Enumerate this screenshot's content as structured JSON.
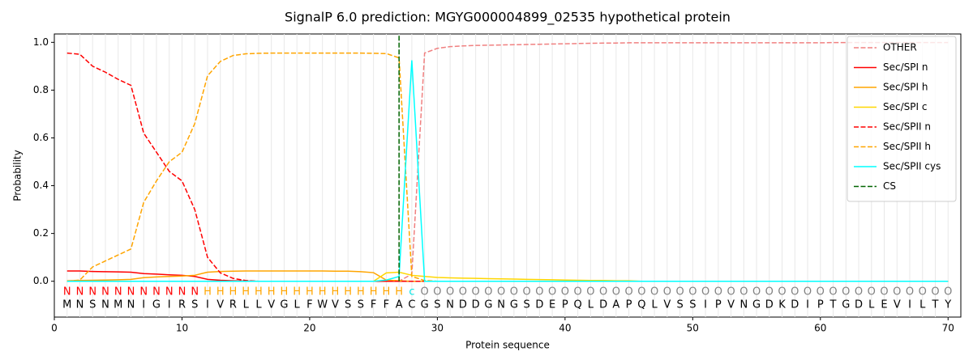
{
  "chart_data": {
    "type": "line",
    "title": "SignalP 6.0 prediction: MGYG000004899_02535 hypothetical protein",
    "x_label": "Protein sequence",
    "y_label": "Probability",
    "xlim": [
      0,
      71
    ],
    "ylim": [
      -0.15,
      1.035
    ],
    "xticks": [
      0,
      10,
      20,
      30,
      40,
      50,
      60,
      70
    ],
    "yticks": [
      {
        "value": 0,
        "label": "0.0"
      },
      0.2,
      0.4,
      0.6,
      0.8,
      {
        "value": 1,
        "label": "1.0"
      }
    ],
    "legend": "upper right",
    "x": [
      1,
      2,
      3,
      4,
      5,
      6,
      7,
      8,
      9,
      10,
      11,
      12,
      13,
      14,
      15,
      16,
      17,
      18,
      19,
      20,
      21,
      22,
      23,
      24,
      25,
      26,
      27,
      28,
      29,
      30,
      31,
      32,
      33,
      34,
      35,
      36,
      37,
      38,
      39,
      40,
      41,
      42,
      43,
      44,
      45,
      46,
      47,
      48,
      49,
      50,
      51,
      52,
      53,
      54,
      55,
      56,
      57,
      58,
      59,
      60,
      61,
      62,
      63,
      64,
      65,
      66,
      67,
      68,
      69,
      70
    ],
    "sequence": [
      "M",
      "N",
      "S",
      "N",
      "M",
      "N",
      "I",
      "G",
      "I",
      "R",
      "S",
      "I",
      "V",
      "R",
      "L",
      "L",
      "V",
      "G",
      "L",
      "F",
      "W",
      "V",
      "S",
      "S",
      "F",
      "F",
      "A",
      "C",
      "G",
      "S",
      "N",
      "D",
      "D",
      "G",
      "N",
      "G",
      "S",
      "D",
      "E",
      "P",
      "Q",
      "L",
      "D",
      "A",
      "P",
      "Q",
      "L",
      "V",
      "S",
      "S",
      "I",
      "P",
      "V",
      "N",
      "G",
      "D",
      "K",
      "D",
      "I",
      "P",
      "T",
      "G",
      "D",
      "L",
      "E",
      "V",
      "I",
      "L",
      "T",
      "Y"
    ],
    "labels": [
      "N",
      "N",
      "N",
      "N",
      "N",
      "N",
      "N",
      "N",
      "N",
      "N",
      "N",
      "H",
      "H",
      "H",
      "H",
      "H",
      "H",
      "H",
      "H",
      "H",
      "H",
      "H",
      "H",
      "H",
      "H",
      "H",
      "H",
      "c",
      "O",
      "O",
      "O",
      "O",
      "O",
      "O",
      "O",
      "O",
      "O",
      "O",
      "O",
      "O",
      "O",
      "O",
      "O",
      "O",
      "O",
      "O",
      "O",
      "O",
      "O",
      "O",
      "O",
      "O",
      "O",
      "O",
      "O",
      "O",
      "O",
      "O",
      "O",
      "O",
      "O",
      "O",
      "O",
      "O",
      "O",
      "O",
      "O",
      "O",
      "O",
      "O"
    ],
    "label_colors": {
      "N": "#ff0000",
      "H": "#ffa500",
      "c": "#00e5e5",
      "O": "#808080"
    },
    "series": [
      {
        "name": "OTHER",
        "color": "#f08080",
        "dashed": true,
        "values": [
          0,
          0,
          0,
          0,
          0,
          0,
          0,
          0,
          0,
          0,
          0,
          0,
          0,
          0,
          0,
          0,
          0,
          0,
          0,
          0,
          0,
          0,
          0,
          0,
          0,
          0,
          0,
          0.03,
          0.955,
          0.975,
          0.982,
          0.985,
          0.987,
          0.988,
          0.989,
          0.99,
          0.991,
          0.992,
          0.993,
          0.994,
          0.995,
          0.996,
          0.997,
          0.997,
          0.998,
          0.998,
          0.998,
          0.998,
          0.998,
          0.998,
          0.998,
          0.998,
          0.998,
          0.998,
          0.998,
          0.998,
          0.998,
          0.998,
          0.998,
          0.998,
          0.999,
          0.999,
          0.999,
          0.999,
          0.999,
          0.999,
          0.999,
          0.999,
          0.999,
          0.999
        ]
      },
      {
        "name": "Sec/SPI n",
        "color": "#ff0000",
        "dashed": false,
        "values": [
          0.043,
          0.043,
          0.041,
          0.04,
          0.039,
          0.038,
          0.032,
          0.03,
          0.027,
          0.025,
          0.02,
          0.008,
          0.004,
          0.002,
          0.001,
          0,
          0,
          0,
          0,
          0,
          0,
          0,
          0,
          0,
          0,
          0,
          0,
          0,
          0,
          0,
          0,
          0,
          0,
          0,
          0,
          0,
          0,
          0,
          0,
          0,
          0,
          0,
          0,
          0,
          0,
          0,
          0,
          0,
          0,
          0,
          0,
          0,
          0,
          0,
          0,
          0,
          0,
          0,
          0,
          0,
          0,
          0,
          0,
          0,
          0,
          0,
          0,
          0,
          0,
          0
        ]
      },
      {
        "name": "Sec/SPI h",
        "color": "#ffa500",
        "dashed": false,
        "values": [
          0.002,
          0.003,
          0.004,
          0.005,
          0.006,
          0.008,
          0.015,
          0.018,
          0.02,
          0.022,
          0.025,
          0.038,
          0.041,
          0.042,
          0.043,
          0.043,
          0.043,
          0.043,
          0.043,
          0.043,
          0.043,
          0.042,
          0.042,
          0.04,
          0.036,
          0.005,
          0.002,
          0,
          0,
          0,
          0,
          0,
          0,
          0,
          0,
          0,
          0,
          0,
          0,
          0,
          0,
          0,
          0,
          0,
          0,
          0,
          0,
          0,
          0,
          0,
          0,
          0,
          0,
          0,
          0,
          0,
          0,
          0,
          0,
          0,
          0,
          0,
          0,
          0,
          0,
          0,
          0,
          0,
          0,
          0
        ]
      },
      {
        "name": "Sec/SPI c",
        "color": "#ffd700",
        "dashed": false,
        "values": [
          0,
          0,
          0,
          0,
          0,
          0,
          0,
          0,
          0,
          0,
          0,
          0,
          0,
          0,
          0,
          0,
          0,
          0,
          0,
          0,
          0,
          0,
          0,
          0,
          0,
          0.035,
          0.038,
          0.025,
          0.02,
          0.016,
          0.014,
          0.013,
          0.012,
          0.011,
          0.01,
          0.009,
          0.008,
          0.007,
          0.006,
          0.005,
          0.004,
          0.003,
          0.003,
          0.002,
          0.002,
          0,
          0,
          0,
          0,
          0,
          0,
          0,
          0,
          0,
          0,
          0,
          0,
          0,
          0,
          0,
          0,
          0,
          0,
          0,
          0,
          0,
          0,
          0,
          0,
          0
        ]
      },
      {
        "name": "Sec/SPII n",
        "color": "#ff0000",
        "dashed": true,
        "values": [
          0.955,
          0.95,
          0.9,
          0.875,
          0.845,
          0.82,
          0.62,
          0.54,
          0.46,
          0.42,
          0.3,
          0.1,
          0.035,
          0.012,
          0.003,
          0,
          0,
          0,
          0,
          0,
          0,
          0,
          0,
          0,
          0,
          0,
          0,
          0,
          0,
          0,
          0,
          0,
          0,
          0,
          0,
          0,
          0,
          0,
          0,
          0,
          0,
          0,
          0,
          0,
          0,
          0,
          0,
          0,
          0,
          0,
          0,
          0,
          0,
          0,
          0,
          0,
          0,
          0,
          0,
          0,
          0,
          0,
          0,
          0,
          0,
          0,
          0,
          0,
          0,
          0
        ]
      },
      {
        "name": "Sec/SPII h",
        "color": "#ffa500",
        "dashed": true,
        "values": [
          0,
          0.005,
          0.06,
          0.085,
          0.11,
          0.135,
          0.33,
          0.42,
          0.5,
          0.54,
          0.66,
          0.86,
          0.92,
          0.945,
          0.952,
          0.954,
          0.955,
          0.955,
          0.955,
          0.955,
          0.955,
          0.955,
          0.955,
          0.955,
          0.954,
          0.953,
          0.935,
          0.02,
          0.003,
          0,
          0,
          0,
          0,
          0,
          0,
          0,
          0,
          0,
          0,
          0,
          0,
          0,
          0,
          0,
          0,
          0,
          0,
          0,
          0,
          0,
          0,
          0,
          0,
          0,
          0,
          0,
          0,
          0,
          0,
          0,
          0,
          0,
          0,
          0,
          0,
          0,
          0,
          0,
          0,
          0
        ]
      },
      {
        "name": "Sec/SPII cys",
        "color": "#00ffff",
        "dashed": false,
        "values": [
          0,
          0,
          0,
          0,
          0,
          0,
          0,
          0,
          0,
          0,
          0,
          0,
          0,
          0,
          0,
          0,
          0,
          0,
          0,
          0,
          0,
          0,
          0,
          0,
          0,
          0.005,
          0.02,
          0.925,
          0,
          0,
          0,
          0,
          0,
          0,
          0,
          0,
          0,
          0,
          0,
          0,
          0,
          0,
          0,
          0,
          0,
          0,
          0,
          0,
          0,
          0,
          0,
          0,
          0,
          0,
          0,
          0,
          0,
          0,
          0,
          0,
          0,
          0,
          0,
          0,
          0,
          0,
          0,
          0,
          0,
          0
        ]
      }
    ],
    "cs": {
      "name": "CS",
      "color": "#006400",
      "x": 27
    }
  }
}
